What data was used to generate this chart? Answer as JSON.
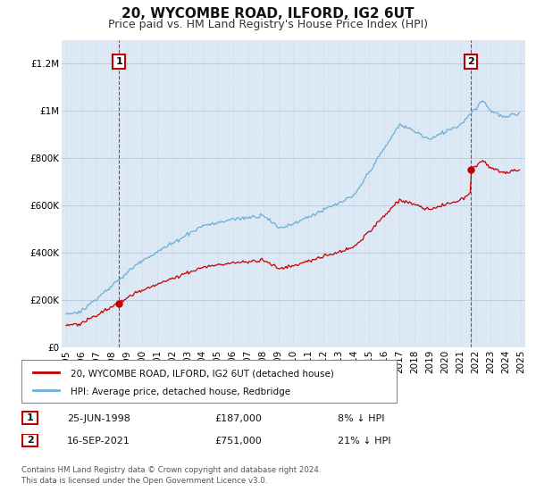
{
  "title": "20, WYCOMBE ROAD, ILFORD, IG2 6UT",
  "subtitle": "Price paid vs. HM Land Registry's House Price Index (HPI)",
  "ylim": [
    0,
    1300000
  ],
  "yticks": [
    0,
    200000,
    400000,
    600000,
    800000,
    1000000,
    1200000
  ],
  "ytick_labels": [
    "£0",
    "£200K",
    "£400K",
    "£600K",
    "£800K",
    "£1M",
    "£1.2M"
  ],
  "hpi_color": "#6baed6",
  "price_color": "#c00000",
  "sale1_year": 1998.48,
  "sale1_price": 187000,
  "sale2_year": 2021.71,
  "sale2_price": 751000,
  "legend_label_price": "20, WYCOMBE ROAD, ILFORD, IG2 6UT (detached house)",
  "legend_label_hpi": "HPI: Average price, detached house, Redbridge",
  "annotation1_label": "1",
  "annotation2_label": "2",
  "info1_date": "25-JUN-1998",
  "info1_price": "£187,000",
  "info1_hpi": "8% ↓ HPI",
  "info2_date": "16-SEP-2021",
  "info2_price": "£751,000",
  "info2_hpi": "21% ↓ HPI",
  "footer": "Contains HM Land Registry data © Crown copyright and database right 2024.\nThis data is licensed under the Open Government Licence v3.0.",
  "bg_color": "#ffffff",
  "plot_bg_color": "#dce9f5",
  "grid_color": "#b8cfe0",
  "title_fontsize": 11,
  "subtitle_fontsize": 9,
  "tick_fontsize": 7.5,
  "xmin": 1995,
  "xmax": 2025
}
